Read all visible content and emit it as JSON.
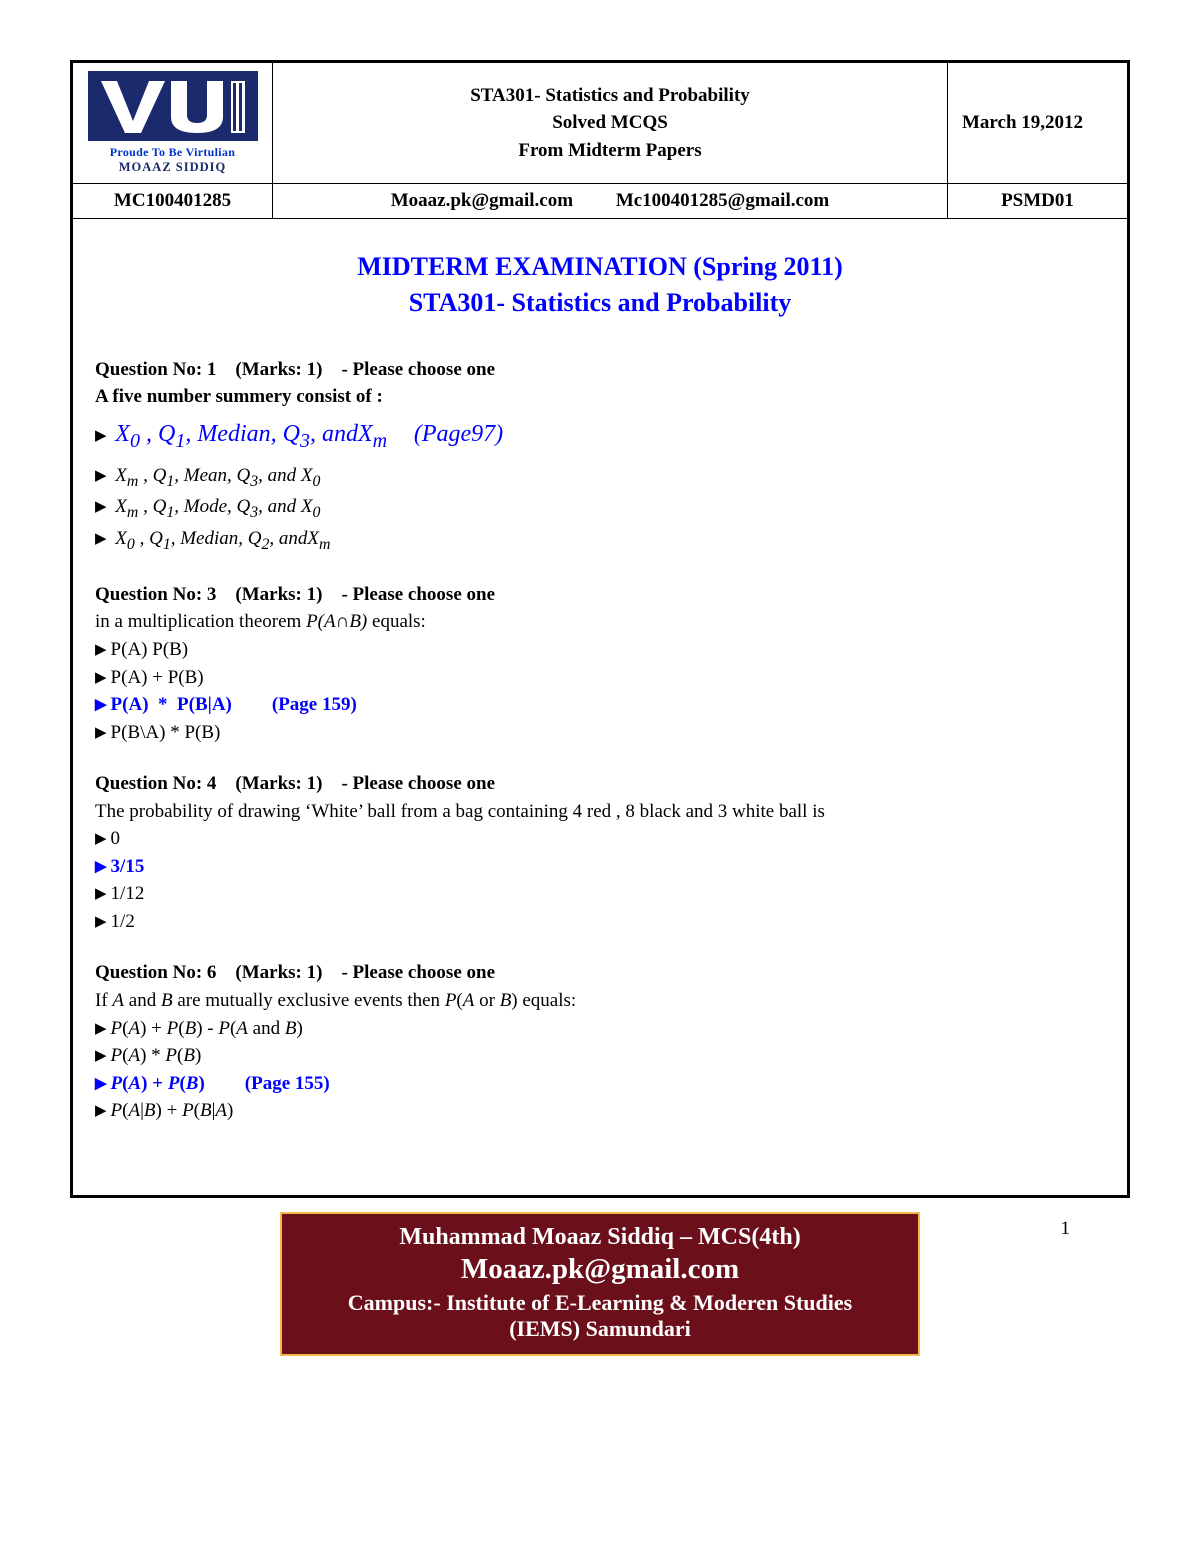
{
  "logo": {
    "subtitle1": "Proude To Be Virtulian",
    "subtitle2": "MOAAZ SIDDIQ",
    "bg_color": "#1a2a6c",
    "text_color": "#ffffff"
  },
  "header": {
    "title_line1": "STA301- Statistics and Probability",
    "title_line2": "Solved MCQS",
    "title_line3": "From Midterm Papers",
    "date": "March 19,2012",
    "id": "MC100401285",
    "email1": "Moaaz.pk@gmail.com",
    "email2": "Mc100401285@gmail.com",
    "code": "PSMD01"
  },
  "exam": {
    "title_line1": "MIDTERM EXAMINATION (Spring 2011)",
    "title_line2": "STA301- Statistics and Probability",
    "title_color": "#0000ff"
  },
  "q1": {
    "header": "Question No: 1 (Marks: 1) - Please choose one",
    "text": "A five number summery consist of :",
    "opt1_html": "X<sub>0</sub> , Q<sub>1</sub>, Median, Q<sub>3</sub>, andX<sub>m</sub>",
    "opt1_page": "(Page97)",
    "opt2_html": "X<sub>m</sub> , Q<sub>1</sub>, Mean, Q<sub>3</sub>, and X<sub>0</sub>",
    "opt3_html": "X<sub>m</sub> , Q<sub>1</sub>, Mode, Q<sub>3</sub>, and X<sub>0</sub>",
    "opt4_html": "X<sub>0</sub> , Q<sub>1</sub>, Median, Q<sub>2</sub>, andX<sub>m</sub>"
  },
  "q3": {
    "header": "Question No: 3 (Marks: 1) - Please choose one",
    "text_pre": "in a multiplication theorem ",
    "text_math": "P(A∩B)",
    "text_post": " equals:",
    "opt1": "P(A) P(B)",
    "opt2": "P(A) + P(B)",
    "opt3": "P(A)  *  P(B|A)",
    "opt3_page": "(Page 159)",
    "opt4": "P(B\\A) * P(B)"
  },
  "q4": {
    "header": "Question No: 4 (Marks: 1) - Please choose one",
    "text": "The probability of drawing ‘White’ ball from a bag containing 4 red , 8 black and 3 white ball is",
    "opt1": "0",
    "opt2": "3/15",
    "opt3": "1/12",
    "opt4": "1/2"
  },
  "q6": {
    "header": "Question No: 6 (Marks: 1) - Please choose one",
    "text_html": "If <i>A</i> and <i>B</i> are mutually exclusive events then <i>P</i>(<i>A</i> or <i>B</i>) equals:",
    "opt1_html": "<i>P</i>(<i>A</i>) + <i>P</i>(<i>B</i>) - <i>P</i>(<i>A</i> and <i>B</i>)",
    "opt2_html": "<i>P</i>(<i>A</i>) * <i>P</i>(<i>B</i>)",
    "opt3_html": "<i>P</i>(<i>A</i>) + <i>P</i>(<i>B</i>)",
    "opt3_page": "(Page 155)",
    "opt4_html": "<i>P</i>(<i>A</i>|<i>B</i>) + <i>P</i>(<i>B</i>|<i>A</i>)"
  },
  "footer": {
    "page_number": "1",
    "line1": "Muhammad Moaaz Siddiq – MCS(4th)",
    "line2": "Moaaz.pk@gmail.com",
    "line3": "Campus:- Institute of E-Learning & Moderen Studies",
    "line4": "(IEMS) Samundari",
    "bg_color": "#6b0f1a",
    "border_color": "#f5b84a",
    "text_color": "#ffffff"
  },
  "colors": {
    "answer_color": "#0000ff",
    "text_color": "#000000",
    "border_color": "#000000"
  }
}
